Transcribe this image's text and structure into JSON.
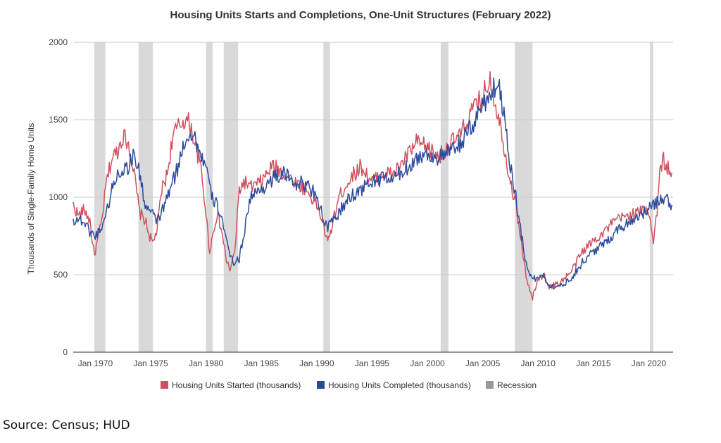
{
  "chart_data": {
    "type": "line",
    "title": "Housing Units Starts and Completions, One-Unit Structures (February 2022)",
    "xlabel": "",
    "ylabel": "Thousands of Single-Family Home Units",
    "xlim": [
      1968.0,
      2022.2
    ],
    "ylim": [
      0,
      2000
    ],
    "yticks": [
      0,
      500,
      1000,
      1500,
      2000
    ],
    "xticks": [
      {
        "x": 1970,
        "label": "Jan 1970"
      },
      {
        "x": 1975,
        "label": "Jan 1975"
      },
      {
        "x": 1980,
        "label": "Jan 1980"
      },
      {
        "x": 1985,
        "label": "Jan 1985"
      },
      {
        "x": 1990,
        "label": "Jan 1990"
      },
      {
        "x": 1995,
        "label": "Jan 1995"
      },
      {
        "x": 2000,
        "label": "Jan 2000"
      },
      {
        "x": 2005,
        "label": "Jan 2005"
      },
      {
        "x": 2010,
        "label": "Jan 2010"
      },
      {
        "x": 2015,
        "label": "Jan 2015"
      },
      {
        "x": 2020,
        "label": "Jan 2020"
      }
    ],
    "grid": true,
    "legend_position": "bottom",
    "series": [
      {
        "name": "Housing Units Started (thousands)",
        "color": "#d0505f",
        "x": [
          1968.0,
          1968.5,
          1969.0,
          1969.5,
          1969.9,
          1970.2,
          1970.6,
          1971.0,
          1971.5,
          1972.0,
          1972.5,
          1973.0,
          1973.5,
          1974.0,
          1974.5,
          1974.9,
          1975.2,
          1975.6,
          1976.0,
          1976.5,
          1977.0,
          1977.5,
          1978.0,
          1978.5,
          1979.0,
          1979.5,
          1980.0,
          1980.3,
          1980.6,
          1981.0,
          1981.5,
          1981.8,
          1982.2,
          1982.6,
          1983.0,
          1983.5,
          1984.0,
          1985.0,
          1986.0,
          1986.5,
          1987.0,
          1988.0,
          1989.0,
          1989.5,
          1990.0,
          1990.5,
          1991.0,
          1991.5,
          1992.0,
          1993.0,
          1994.0,
          1994.5,
          1995.0,
          1996.0,
          1997.0,
          1998.0,
          1998.5,
          1999.0,
          2000.0,
          2001.0,
          2001.5,
          2002.0,
          2003.0,
          2004.0,
          2005.0,
          2005.7,
          2006.0,
          2006.5,
          2007.0,
          2007.5,
          2008.0,
          2008.5,
          2009.0,
          2009.5,
          2010.0,
          2010.5,
          2011.0,
          2012.0,
          2013.0,
          2014.0,
          2015.0,
          2016.0,
          2017.0,
          2018.0,
          2019.0,
          2019.7,
          2020.1,
          2020.4,
          2020.8,
          2021.0,
          2021.3,
          2021.6,
          2022.0,
          2022.1
        ],
        "y": [
          950,
          880,
          920,
          850,
          620,
          720,
          850,
          1100,
          1250,
          1300,
          1400,
          1350,
          1150,
          900,
          850,
          750,
          700,
          800,
          1050,
          1150,
          1400,
          1450,
          1500,
          1480,
          1350,
          1200,
          900,
          650,
          750,
          900,
          750,
          600,
          530,
          650,
          1050,
          1100,
          1060,
          1100,
          1200,
          1180,
          1150,
          1100,
          1050,
          1000,
          950,
          850,
          700,
          850,
          1000,
          1120,
          1200,
          1150,
          1100,
          1150,
          1150,
          1250,
          1300,
          1350,
          1320,
          1260,
          1300,
          1340,
          1400,
          1550,
          1650,
          1780,
          1650,
          1500,
          1300,
          1100,
          950,
          700,
          450,
          350,
          470,
          500,
          420,
          450,
          520,
          650,
          720,
          780,
          850,
          880,
          900,
          920,
          900,
          700,
          950,
          1150,
          1250,
          1200,
          1150,
          1210
        ]
      },
      {
        "name": "Housing Units Completed (thousands)",
        "color": "#2b4a9b",
        "x": [
          1968.0,
          1968.5,
          1969.0,
          1969.5,
          1970.0,
          1970.5,
          1971.0,
          1971.5,
          1972.0,
          1972.5,
          1973.0,
          1973.5,
          1974.0,
          1974.5,
          1975.0,
          1975.5,
          1976.0,
          1976.5,
          1977.0,
          1977.5,
          1978.0,
          1978.5,
          1979.0,
          1979.5,
          1980.0,
          1980.5,
          1981.0,
          1981.5,
          1982.0,
          1982.5,
          1983.0,
          1983.5,
          1984.0,
          1985.0,
          1986.0,
          1987.0,
          1988.0,
          1989.0,
          1990.0,
          1990.5,
          1991.0,
          1991.5,
          1992.0,
          1993.0,
          1994.0,
          1995.0,
          1996.0,
          1997.0,
          1998.0,
          1999.0,
          2000.0,
          2001.0,
          2002.0,
          2003.0,
          2004.0,
          2005.0,
          2006.0,
          2006.5,
          2007.0,
          2007.5,
          2008.0,
          2008.5,
          2009.0,
          2009.5,
          2010.0,
          2010.5,
          2011.0,
          2012.0,
          2013.0,
          2014.0,
          2015.0,
          2016.0,
          2017.0,
          2018.0,
          2019.0,
          2020.0,
          2020.5,
          2021.0,
          2021.5,
          2022.0,
          2022.1
        ],
        "y": [
          850,
          860,
          840,
          780,
          750,
          800,
          900,
          1050,
          1150,
          1180,
          1200,
          1280,
          1150,
          950,
          900,
          850,
          900,
          1000,
          1100,
          1200,
          1350,
          1420,
          1380,
          1280,
          1200,
          1000,
          950,
          850,
          650,
          580,
          600,
          800,
          1000,
          1050,
          1120,
          1150,
          1100,
          1080,
          1020,
          880,
          800,
          850,
          900,
          1000,
          1050,
          1100,
          1120,
          1120,
          1180,
          1250,
          1280,
          1250,
          1290,
          1350,
          1450,
          1600,
          1700,
          1720,
          1500,
          1200,
          1000,
          750,
          550,
          470,
          480,
          500,
          430,
          420,
          480,
          580,
          650,
          700,
          780,
          830,
          880,
          920,
          950,
          980,
          1000,
          950,
          1000
        ]
      }
    ],
    "recession_label": "Recession",
    "recession_color": "#d9d9d9",
    "recessions": [
      [
        1969.9,
        1970.9
      ],
      [
        1973.9,
        1975.2
      ],
      [
        1980.0,
        1980.6
      ],
      [
        1981.6,
        1982.9
      ],
      [
        1990.6,
        1991.2
      ],
      [
        2001.2,
        2001.9
      ],
      [
        2007.9,
        2009.5
      ],
      [
        2020.1,
        2020.4
      ]
    ]
  },
  "source": "Source: Census; HUD"
}
